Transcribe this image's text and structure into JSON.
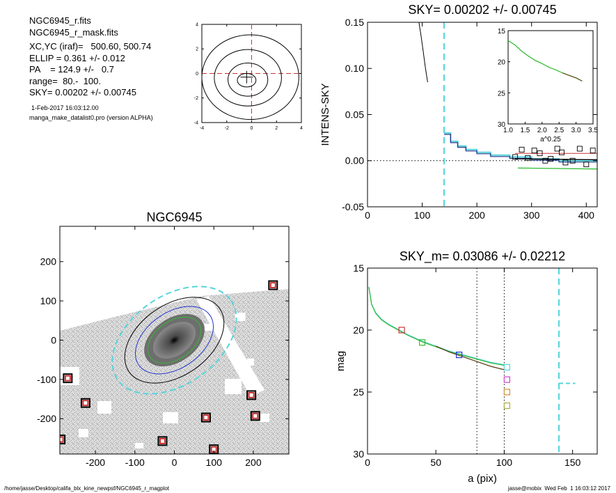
{
  "header_info": {
    "lines": [
      "NGC6945_r.fits",
      "NGC6945_r_mask.fits",
      "XC,YC (iraf)=   500.60, 500.74",
      "ELLIP = 0.361 +/- 0.012",
      "PA    = 124.9 +/-   0.7",
      "range=  80.-  100.",
      "SKY= 0.00202 +/- 0.00745"
    ],
    "date": "1-Feb-2017 16:03:12.00",
    "program": "manga_make_datalist0.pro (version ALPHA)"
  },
  "footer": {
    "path": "/home/jasse/Desktop/califa_blx_kine_newpsf/NGC6945_r_magplot",
    "stamp": "jasse@mobix  Wed Feb  1 16:03:12 2017"
  },
  "colors": {
    "cyan": "#55d4dc",
    "green": "#33bb33",
    "blue": "#2233cc",
    "red": "#cc3333",
    "orange": "#d09030",
    "magenta": "#cc44cc",
    "olive": "#a8b040",
    "navy": "#223388"
  },
  "chart_data": [
    {
      "type": "contour",
      "title": "",
      "xlim": [
        -4,
        4
      ],
      "ylim": [
        -4,
        4
      ],
      "x_ticks": [
        "-4",
        "-2",
        "0",
        "2",
        "4"
      ],
      "y_ticks": [
        "-4",
        "-2",
        "0",
        "2",
        "4"
      ],
      "crosshair": [
        0,
        0
      ],
      "center_cross": [
        -0.4,
        -0.3
      ],
      "contours": [
        {
          "cx": -0.1,
          "cy": -0.3,
          "rx": 3.9,
          "ry": 3.45
        },
        {
          "cx": -0.3,
          "cy": -0.35,
          "rx": 2.7,
          "ry": 2.3
        },
        {
          "cx": -0.3,
          "cy": -0.5,
          "rx": 1.6,
          "ry": 1.35
        },
        {
          "cx": -0.4,
          "cy": -0.55,
          "rx": 0.75,
          "ry": 0.55
        }
      ]
    },
    {
      "type": "line",
      "title": "SKY= 0.00202 +/- 0.00745",
      "xlabel": "",
      "ylabel": "INTENS-SKY",
      "xlim": [
        0,
        420
      ],
      "ylim": [
        -0.05,
        0.15
      ],
      "x_ticks": [
        "0",
        "100",
        "200",
        "300",
        "400"
      ],
      "y_ticks": [
        "-0.05",
        "0.00",
        "0.05",
        "0.10",
        "0.15"
      ],
      "sky_line_x": 140,
      "curve": {
        "x": [
          94,
          98,
          102,
          106,
          110
        ],
        "y": [
          0.15,
          0.135,
          0.118,
          0.1,
          0.085
        ]
      },
      "profile_step": {
        "x": [
          140,
          152,
          152,
          165,
          165,
          180,
          180,
          200,
          200,
          225,
          225,
          260,
          260,
          300,
          300,
          350,
          350,
          420
        ],
        "y": [
          0.03,
          0.03,
          0.021,
          0.021,
          0.016,
          0.016,
          0.012,
          0.012,
          0.009,
          0.009,
          0.006,
          0.006,
          0.004,
          0.004,
          0.002,
          0.002,
          0.0,
          0.0
        ]
      },
      "red_line": {
        "x": [
          270,
          420
        ],
        "y": [
          0.008,
          0.008
        ]
      },
      "green_line": {
        "x": [
          275,
          420
        ],
        "y": [
          -0.008,
          -0.009
        ]
      },
      "navy_line": {
        "x": [
          270,
          420
        ],
        "y": [
          0.002,
          0.001
        ]
      },
      "squares": {
        "x": [
          270,
          282,
          293,
          305,
          315,
          325,
          335,
          347,
          355,
          362,
          375,
          388,
          400,
          412
        ],
        "y": [
          0.004,
          0.012,
          0.003,
          0.011,
          0.008,
          0.0,
          0.002,
          0.013,
          0.009,
          -0.002,
          0.0,
          0.013,
          -0.004,
          0.011
        ]
      },
      "inset": {
        "xlim": [
          1.0,
          3.5
        ],
        "ylim": [
          30,
          15
        ],
        "xlabel": "a^0.25",
        "x_ticks": [
          "1.0",
          "1.5",
          "2.0",
          "2.5",
          "3.0",
          "3.5"
        ],
        "y_ticks": [
          "15",
          "20",
          "25",
          "30"
        ],
        "curve": {
          "x": [
            1.0,
            1.2,
            1.4,
            1.6,
            1.8,
            2.0,
            2.2,
            2.4,
            2.6,
            2.8,
            3.0,
            3.18
          ],
          "y": [
            16.6,
            17.3,
            18.3,
            19.1,
            19.8,
            20.3,
            20.9,
            21.3,
            21.8,
            22.2,
            22.6,
            23.1
          ]
        }
      }
    },
    {
      "type": "image",
      "title": "NGC6945",
      "xlim": [
        -290,
        290
      ],
      "ylim": [
        -290,
        290
      ],
      "x_ticks": [
        "-200",
        "-100",
        "0",
        "100",
        "200"
      ],
      "y_ticks": [
        "200",
        "100",
        "0",
        "-100",
        "-200"
      ],
      "ellipse_pa_deg": 124.9,
      "ellip": 0.361,
      "ellipse_semi_major": [
        75,
        110,
        140,
        175
      ],
      "ellipse_colors": [
        "green",
        "blue",
        "black",
        "cyan"
      ],
      "red_squares": {
        "x": [
          250,
          -270,
          -225,
          195,
          205,
          80,
          -30,
          -288,
          100
        ],
        "y": [
          140,
          -97,
          -160,
          -140,
          -193,
          -197,
          -257,
          -253,
          -278
        ]
      }
    },
    {
      "type": "line",
      "title": "SKY_m=  0.03086 +/- 0.02212",
      "xlabel": "a (pix)",
      "ylabel": "mag",
      "xlim": [
        0,
        168
      ],
      "ylim": [
        30,
        15
      ],
      "x_ticks": [
        "0",
        "50",
        "100",
        "150"
      ],
      "y_ticks": [
        "15",
        "20",
        "25",
        "30"
      ],
      "vlines_dotted": [
        80,
        100
      ],
      "sky_line_x": 140,
      "sky_level": {
        "x": [
          140,
          152
        ],
        "y": [
          24.3,
          24.3
        ]
      },
      "curve": {
        "x": [
          1,
          3,
          6,
          10,
          15,
          20,
          25,
          30,
          40,
          50,
          60,
          70,
          80,
          90,
          100
        ],
        "y": [
          16.5,
          17.9,
          18.6,
          19.1,
          19.5,
          19.8,
          20.1,
          20.4,
          20.9,
          21.3,
          21.7,
          22.0,
          22.3,
          22.6,
          22.8
        ]
      },
      "squares": [
        {
          "x": 25,
          "y": 20.0,
          "color": "red"
        },
        {
          "x": 40,
          "y": 21.0,
          "color": "green"
        },
        {
          "x": 67,
          "y": 22.0,
          "color": "blue"
        },
        {
          "x": 102,
          "y": 23.0,
          "color": "cyan"
        },
        {
          "x": 102,
          "y": 24.0,
          "color": "magenta"
        },
        {
          "x": 102,
          "y": 25.0,
          "color": "orange"
        },
        {
          "x": 102,
          "y": 26.1,
          "color": "olive"
        }
      ]
    }
  ]
}
